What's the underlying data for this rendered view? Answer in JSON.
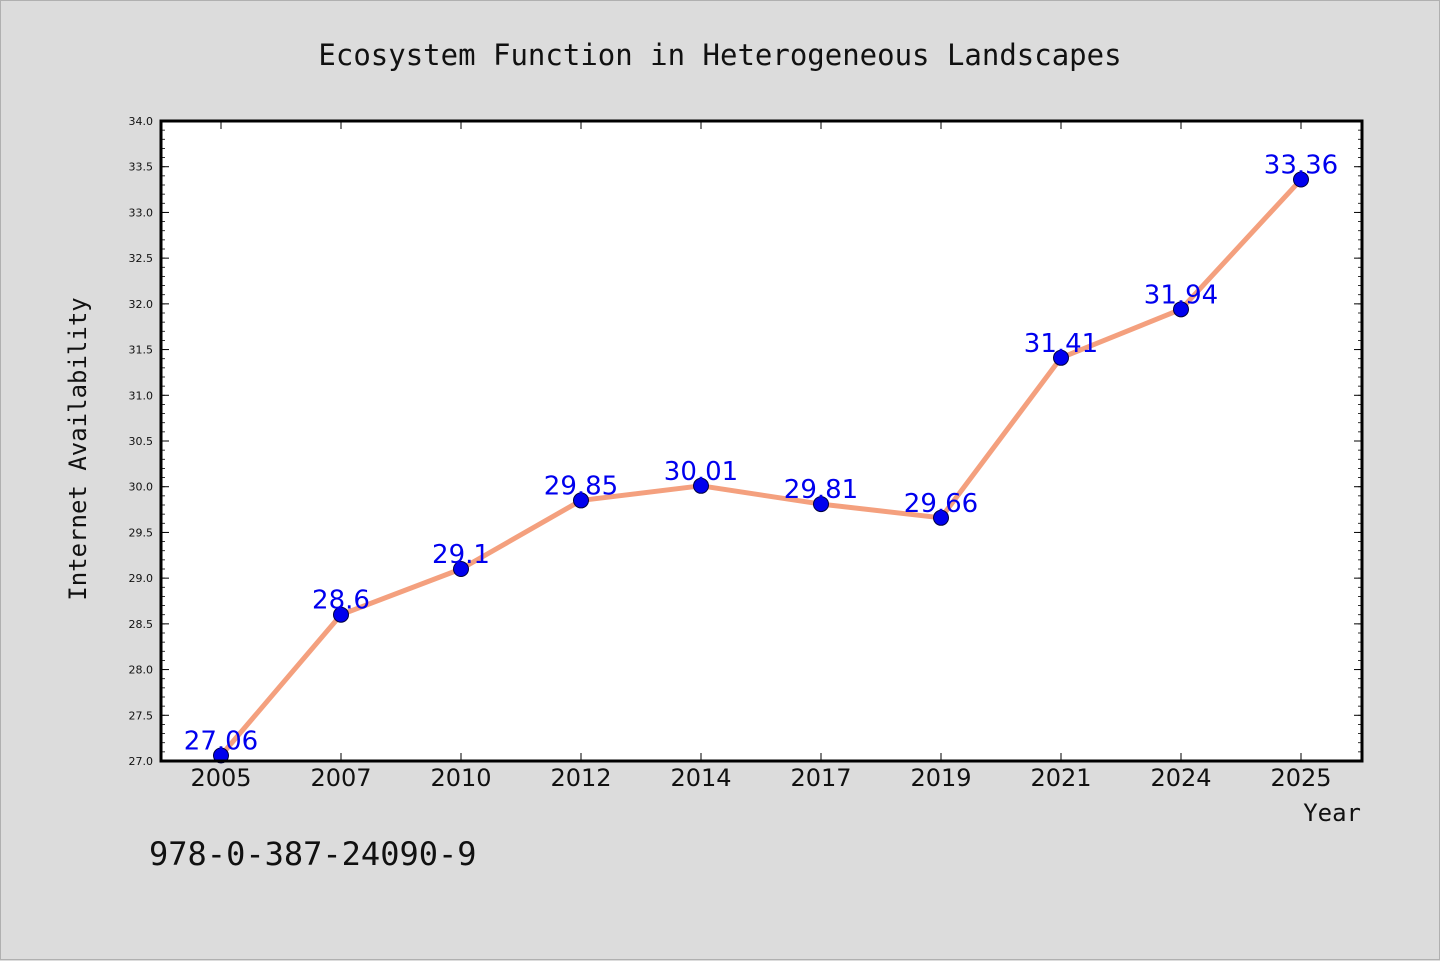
{
  "chart_data": {
    "type": "line",
    "title": "Ecosystem Function in Heterogeneous Landscapes",
    "xlabel": "Year",
    "ylabel": "Internet Availability",
    "categories": [
      "2005",
      "2007",
      "2010",
      "2012",
      "2014",
      "2017",
      "2019",
      "2021",
      "2024",
      "2025"
    ],
    "series": [
      {
        "values": [
          27.06,
          28.6,
          29.1,
          29.85,
          30.01,
          29.81,
          29.66,
          31.41,
          31.94,
          33.36
        ],
        "data_labels": [
          "27.06",
          "28.6",
          "29.1",
          "29.85",
          "30.01",
          "29.81",
          "29.66",
          "31.41",
          "31.94",
          "33.36"
        ],
        "line_color": "#f4a07e",
        "marker_color": "#0000ee"
      }
    ],
    "ylim": [
      27.0,
      34.0
    ],
    "yticks": [
      "27.0",
      "27.5",
      "28.0",
      "28.5",
      "29.0",
      "29.5",
      "30.0",
      "30.5",
      "31.0",
      "31.5",
      "32.0",
      "32.5",
      "33.0",
      "33.5",
      "34.0"
    ],
    "grid": false,
    "legend": "none"
  },
  "annotation": "978-0-387-24090-9"
}
